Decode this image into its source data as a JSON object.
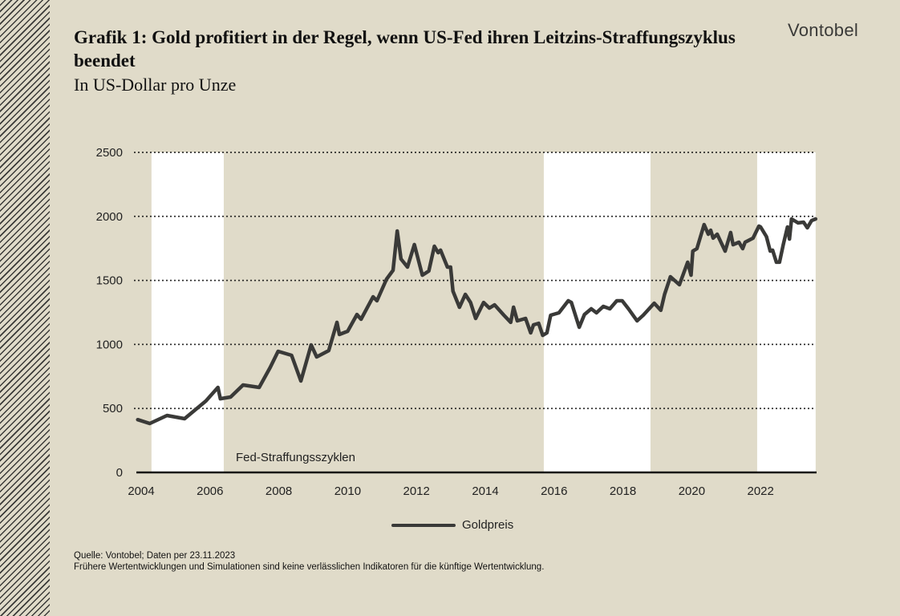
{
  "header": {
    "title": "Grafik 1: Gold profitiert in der Regel, wenn US-Fed ihren Leitzins-Straffungszyklus beendet",
    "subtitle": "In US-Dollar pro Unze",
    "logo": "Vontobel"
  },
  "footer": {
    "source": "Quelle: Vontobel; Daten per 23.11.2023",
    "disclaimer": "Frühere Wertentwicklungen und Simulationen sind keine verlässlichen Indikatoren für die künftige Wertentwicklung."
  },
  "colors": {
    "background": "#e0dbc9",
    "line": "#3a3a38",
    "band": "#ffffff"
  },
  "chart_data": {
    "type": "line",
    "title": "Grafik 1: Gold profitiert in der Regel, wenn US-Fed ihren Leitzins-Straffungszyklus beendet",
    "subtitle": "In US-Dollar pro Unze",
    "xlabel": "",
    "ylabel": "",
    "xlim": [
      2003.9,
      2023.6
    ],
    "ylim": [
      0,
      2500
    ],
    "x_ticks": [
      "2004",
      "2006",
      "2008",
      "2010",
      "2012",
      "2014",
      "2016",
      "2018",
      "2020",
      "2022"
    ],
    "y_ticks": [
      "0",
      "500",
      "1000",
      "1500",
      "2000",
      "2500"
    ],
    "grid": "horizontal dotted",
    "legend": "bottom-center",
    "band_label": "Fed-Straffungsszyklen",
    "bands": [
      [
        2004.3,
        2006.4
      ],
      [
        2015.7,
        2018.8
      ],
      [
        2021.9,
        2023.6
      ]
    ],
    "series": [
      {
        "name": "Goldpreis",
        "x": [
          2003.9,
          2004.25,
          2004.75,
          2005.26,
          2005.88,
          2006.23,
          2006.3,
          2006.6,
          2006.96,
          2007.43,
          2007.75,
          2007.98,
          2008.37,
          2008.64,
          2008.94,
          2009.1,
          2009.45,
          2009.69,
          2009.76,
          2010.0,
          2010.27,
          2010.39,
          2010.74,
          2010.85,
          2011.13,
          2011.32,
          2011.44,
          2011.55,
          2011.74,
          2011.94,
          2012.17,
          2012.36,
          2012.52,
          2012.63,
          2012.7,
          2012.9,
          2012.99,
          2013.06,
          2013.25,
          2013.42,
          2013.57,
          2013.72,
          2013.95,
          2014.12,
          2014.27,
          2014.54,
          2014.74,
          2014.82,
          2014.93,
          2015.17,
          2015.32,
          2015.4,
          2015.55,
          2015.67,
          2015.79,
          2015.9,
          2016.14,
          2016.41,
          2016.5,
          2016.73,
          2016.88,
          2017.08,
          2017.23,
          2017.43,
          2017.62,
          2017.82,
          2017.98,
          2018.16,
          2018.41,
          2018.59,
          2018.91,
          2019.1,
          2019.21,
          2019.38,
          2019.64,
          2019.88,
          2019.98,
          2020.03,
          2020.15,
          2020.36,
          2020.48,
          2020.55,
          2020.62,
          2020.74,
          2020.97,
          2021.13,
          2021.2,
          2021.37,
          2021.48,
          2021.55,
          2021.78,
          2021.95,
          2022.0,
          2022.17,
          2022.28,
          2022.35,
          2022.46,
          2022.55,
          2022.66,
          2022.78,
          2022.84,
          2022.9,
          2023.09,
          2023.25,
          2023.36,
          2023.48,
          2023.6
        ],
        "y": [
          412,
          382,
          445,
          420,
          558,
          664,
          576,
          589,
          683,
          664,
          821,
          946,
          915,
          714,
          996,
          902,
          952,
          1172,
          1078,
          1103,
          1234,
          1197,
          1372,
          1341,
          1510,
          1579,
          1886,
          1667,
          1604,
          1780,
          1541,
          1573,
          1767,
          1717,
          1736,
          1604,
          1604,
          1416,
          1290,
          1391,
          1328,
          1203,
          1328,
          1284,
          1309,
          1228,
          1172,
          1291,
          1184,
          1203,
          1090,
          1153,
          1165,
          1071,
          1090,
          1228,
          1247,
          1341,
          1328,
          1134,
          1234,
          1278,
          1247,
          1297,
          1278,
          1341,
          1341,
          1278,
          1184,
          1228,
          1322,
          1266,
          1391,
          1529,
          1466,
          1642,
          1541,
          1729,
          1748,
          1936,
          1861,
          1892,
          1830,
          1861,
          1729,
          1874,
          1779,
          1798,
          1748,
          1798,
          1830,
          1924,
          1917,
          1842,
          1729,
          1736,
          1642,
          1642,
          1780,
          1917,
          1823,
          1980,
          1949,
          1955,
          1911,
          1967,
          1980
        ]
      }
    ]
  }
}
